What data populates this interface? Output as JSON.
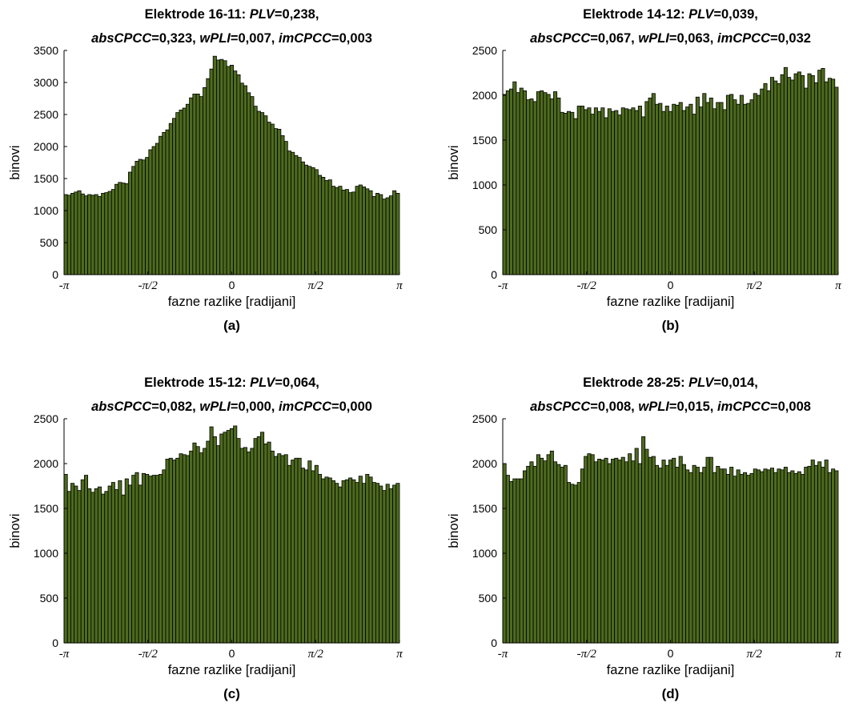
{
  "colors": {
    "bar_fill": "#4d6b1e",
    "bar_edge": "#000000",
    "axis": "#000000"
  },
  "chart_data": [
    {
      "type": "bar",
      "panel": "a",
      "title": {
        "line1": {
          "prefix": "Elektrode 16-11:",
          "m1_name": "PLV",
          "m1_value": "=0,238,"
        },
        "line2": {
          "m2_name": "absCPCC",
          "m2_value": "=0,323,",
          "m3_name": "wPLI",
          "m3_value": "=0,007,",
          "m4_name": "imCPCC",
          "m4_value": "=0,003"
        }
      },
      "xlabel": "fazne razlike [radijani]",
      "ylabel": "binovi",
      "subcaption": "(a)",
      "xlim": [
        -3.1416,
        3.1416
      ],
      "ylim": [
        0,
        3500
      ],
      "yticks": [
        0,
        500,
        1000,
        1500,
        2000,
        2500,
        3000,
        3500
      ],
      "xtick_labels": [
        "-π",
        "-π/2",
        "0",
        "π/2",
        "π"
      ],
      "grid": false,
      "values": [
        1250,
        1240,
        1270,
        1290,
        1310,
        1260,
        1230,
        1250,
        1240,
        1250,
        1220,
        1270,
        1280,
        1300,
        1330,
        1410,
        1440,
        1430,
        1420,
        1600,
        1690,
        1770,
        1800,
        1790,
        1830,
        1950,
        2000,
        2050,
        2160,
        2220,
        2260,
        2360,
        2440,
        2530,
        2570,
        2600,
        2660,
        2760,
        2820,
        2820,
        2780,
        2920,
        3060,
        3210,
        3410,
        3350,
        3360,
        3340,
        3250,
        3270,
        3180,
        3120,
        2990,
        2950,
        2840,
        2780,
        2630,
        2550,
        2530,
        2480,
        2380,
        2350,
        2280,
        2270,
        2170,
        2080,
        1930,
        1910,
        1860,
        1830,
        1760,
        1710,
        1690,
        1670,
        1640,
        1550,
        1520,
        1470,
        1480,
        1380,
        1360,
        1380,
        1320,
        1330,
        1280,
        1290,
        1380,
        1400,
        1370,
        1340,
        1310,
        1220,
        1270,
        1250,
        1180,
        1200,
        1230,
        1310,
        1270
      ]
    },
    {
      "type": "bar",
      "panel": "b",
      "title": {
        "line1": {
          "prefix": "Elektrode 14-12:",
          "m1_name": "PLV",
          "m1_value": "=0,039,"
        },
        "line2": {
          "m2_name": "absCPCC",
          "m2_value": "=0,067,",
          "m3_name": "wPLI",
          "m3_value": "=0,063,",
          "m4_name": "imCPCC",
          "m4_value": "=0,032"
        }
      },
      "xlabel": "fazne razlike [radijani]",
      "ylabel": "binovi",
      "subcaption": "(b)",
      "xlim": [
        -3.1416,
        3.1416
      ],
      "ylim": [
        0,
        2500
      ],
      "yticks": [
        0,
        500,
        1000,
        1500,
        2000,
        2500
      ],
      "xtick_labels": [
        "-π",
        "-π/2",
        "0",
        "π/2",
        "π"
      ],
      "grid": false,
      "values": [
        2010,
        2050,
        2070,
        2150,
        2030,
        2080,
        2050,
        1950,
        1960,
        1930,
        2040,
        2050,
        2030,
        2010,
        1960,
        2040,
        1970,
        1810,
        1800,
        1820,
        1810,
        1740,
        1880,
        1880,
        1840,
        1860,
        1790,
        1860,
        1820,
        1860,
        1750,
        1850,
        1820,
        1830,
        1780,
        1860,
        1850,
        1840,
        1860,
        1830,
        1880,
        1760,
        1930,
        1970,
        2020,
        1900,
        1910,
        1820,
        1880,
        1820,
        1900,
        1890,
        1920,
        1830,
        1870,
        1900,
        1790,
        1980,
        1870,
        2020,
        1920,
        1970,
        1850,
        1920,
        1920,
        1840,
        2000,
        2010,
        1950,
        1900,
        2000,
        1900,
        1910,
        1950,
        2020,
        2000,
        2070,
        2130,
        2050,
        2200,
        2160,
        2130,
        2230,
        2310,
        2200,
        2170,
        2240,
        2260,
        2220,
        2080,
        2240,
        2220,
        2140,
        2280,
        2300,
        2150,
        2190,
        2180,
        2090
      ]
    },
    {
      "type": "bar",
      "panel": "c",
      "title": {
        "line1": {
          "prefix": "Elektrode 15-12:",
          "m1_name": "PLV",
          "m1_value": "=0,064,"
        },
        "line2": {
          "m2_name": "absCPCC",
          "m2_value": "=0,082,",
          "m3_name": "wPLI",
          "m3_value": "=0,000,",
          "m4_name": "imCPCC",
          "m4_value": "=0,000"
        }
      },
      "xlabel": "fazne razlike [radijani]",
      "ylabel": "binovi",
      "subcaption": "(c)",
      "xlim": [
        -3.1416,
        3.1416
      ],
      "ylim": [
        0,
        2500
      ],
      "yticks": [
        0,
        500,
        1000,
        1500,
        2000,
        2500
      ],
      "xtick_labels": [
        "-π",
        "-π/2",
        "0",
        "π/2",
        "π"
      ],
      "grid": false,
      "values": [
        1880,
        1690,
        1780,
        1750,
        1700,
        1820,
        1870,
        1720,
        1680,
        1720,
        1740,
        1660,
        1690,
        1750,
        1790,
        1710,
        1810,
        1650,
        1830,
        1760,
        1870,
        1900,
        1760,
        1890,
        1880,
        1860,
        1870,
        1870,
        1880,
        1930,
        2050,
        2060,
        2040,
        2060,
        2110,
        2100,
        2090,
        2140,
        2230,
        2190,
        2120,
        2170,
        2250,
        2410,
        2300,
        2200,
        2330,
        2350,
        2370,
        2390,
        2420,
        2280,
        2170,
        2180,
        2130,
        2170,
        2280,
        2300,
        2350,
        2220,
        2240,
        2140,
        2080,
        2110,
        2090,
        2100,
        1980,
        2040,
        2060,
        2060,
        1950,
        1930,
        2030,
        1920,
        1980,
        1880,
        1830,
        1850,
        1840,
        1810,
        1780,
        1740,
        1810,
        1820,
        1840,
        1820,
        1790,
        1860,
        1780,
        1880,
        1850,
        1790,
        1780,
        1750,
        1700,
        1770,
        1720,
        1760,
        1780
      ]
    },
    {
      "type": "bar",
      "panel": "d",
      "title": {
        "line1": {
          "prefix": "Elektrode 28-25:",
          "m1_name": "PLV",
          "m1_value": "=0,014,"
        },
        "line2": {
          "m2_name": "absCPCC",
          "m2_value": "=0,008,",
          "m3_name": "wPLI",
          "m3_value": "=0,015,",
          "m4_name": "imCPCC",
          "m4_value": "=0,008"
        }
      },
      "xlabel": "fazne razlike [radijani]",
      "ylabel": "binovi",
      "subcaption": "(d)",
      "xlim": [
        -3.1416,
        3.1416
      ],
      "ylim": [
        0,
        2500
      ],
      "yticks": [
        0,
        500,
        1000,
        1500,
        2000,
        2500
      ],
      "xtick_labels": [
        "-π",
        "-π/2",
        "0",
        "π/2",
        "π"
      ],
      "grid": false,
      "values": [
        2000,
        1870,
        1800,
        1830,
        1830,
        1830,
        1920,
        1970,
        2020,
        1970,
        2100,
        2060,
        2030,
        2100,
        2140,
        2020,
        1990,
        1960,
        1980,
        1790,
        1770,
        1760,
        1790,
        1940,
        2080,
        2110,
        2100,
        2020,
        2050,
        2040,
        2060,
        2000,
        2050,
        2060,
        2040,
        2070,
        2020,
        2110,
        2030,
        2170,
        2000,
        2300,
        2160,
        2070,
        2080,
        1980,
        1950,
        2040,
        1980,
        2040,
        2060,
        1960,
        2080,
        1990,
        1930,
        1900,
        1980,
        1960,
        1900,
        1960,
        2070,
        2070,
        1900,
        1970,
        1940,
        1940,
        1880,
        1960,
        1860,
        1930,
        1880,
        1900,
        1870,
        1890,
        1940,
        1930,
        1910,
        1940,
        1930,
        1950,
        1900,
        1940,
        1930,
        1960,
        1900,
        1920,
        1890,
        1910,
        1880,
        1960,
        1970,
        2040,
        1980,
        2020,
        1960,
        2040,
        1900,
        1940,
        1920
      ]
    }
  ]
}
